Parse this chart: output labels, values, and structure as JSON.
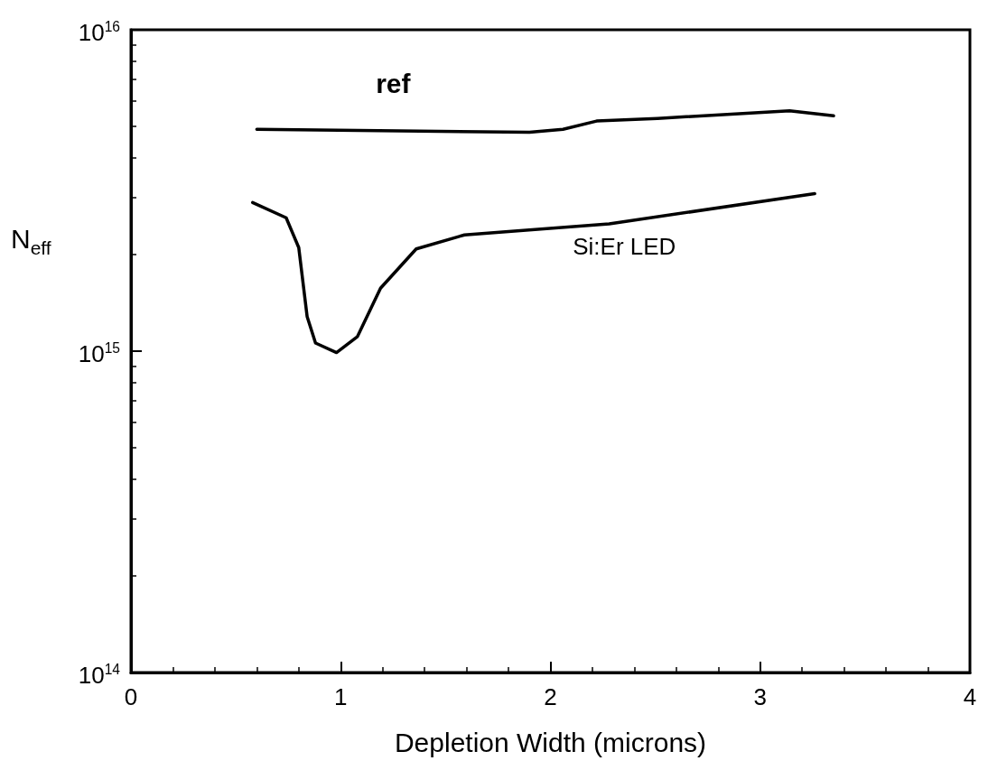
{
  "chart_data": {
    "type": "line",
    "xlabel": "Depletion Width (microns)",
    "ylabel": "N$_{eff}$",
    "log": "y",
    "xlim": [
      0,
      4
    ],
    "xticks": [
      0,
      1,
      2,
      3,
      4
    ],
    "ylim": [
      100000000000000.0,
      1e+16
    ],
    "yticks": [
      {
        "value": 100000000000000.0,
        "label": "10$^{14}$"
      },
      {
        "value": 1000000000000000.0,
        "label": "10$^{15}$"
      },
      {
        "value": 1e+16,
        "label": "10$^{16}$"
      }
    ],
    "grid": false,
    "legend": false,
    "marker": "none",
    "line_style": "solid",
    "series": [
      {
        "name": "ref",
        "color": "#000000",
        "x": [
          0.6,
          1.9,
          2.06,
          2.22,
          2.51,
          3.14,
          3.35
        ],
        "values": [
          4900000000000000.0,
          4800000000000000.0,
          4900000000000000.0,
          5200000000000000.0,
          5300000000000000.0,
          5600000000000000.0,
          5400000000000000.0
        ]
      },
      {
        "name": "Si:Er LED",
        "color": "#000000",
        "x": [
          0.58,
          0.74,
          0.8,
          0.84,
          0.88,
          0.98,
          1.08,
          1.19,
          1.36,
          1.59,
          2.28,
          3.26
        ],
        "values": [
          2900000000000000.0,
          2600000000000000.0,
          2100000000000000.0,
          1280000000000000.0,
          1060000000000000.0,
          990000000000000.0,
          1110000000000000.0,
          1570000000000000.0,
          2080000000000000.0,
          2300000000000000.0,
          2490000000000000.0,
          3090000000000000.0
        ]
      }
    ]
  }
}
